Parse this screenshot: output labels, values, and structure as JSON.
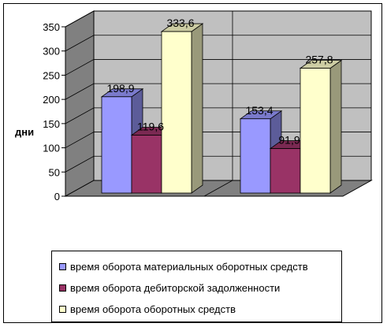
{
  "chart_data": {
    "type": "bar",
    "categories": [
      "",
      ""
    ],
    "ylabel": "дни",
    "ylim": [
      0,
      350
    ],
    "yticks": [
      "0",
      "50",
      "100",
      "150",
      "200",
      "250",
      "300",
      "350"
    ],
    "grid": true,
    "legend_placement": "bottom",
    "series": [
      {
        "name": "время оборота материальных оборотных средств",
        "values": [
          198.9,
          153.4
        ],
        "labels": [
          "198,9",
          "153,4"
        ],
        "color": "#9999ff"
      },
      {
        "name": "время оборота дебиторской задолженности",
        "values": [
          119.6,
          91.9
        ],
        "labels": [
          "119,6",
          "91,9"
        ],
        "color": "#993366"
      },
      {
        "name": "время оборота оборотных средств",
        "values": [
          333.6,
          257.8
        ],
        "labels": [
          "333,6",
          "257,8"
        ],
        "color": "#ffffcc"
      }
    ]
  }
}
